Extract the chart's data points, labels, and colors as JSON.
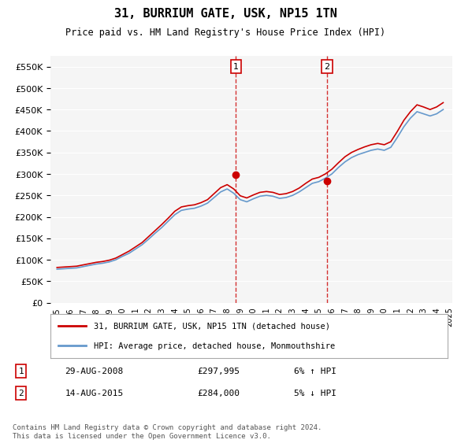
{
  "title": "31, BURRIUM GATE, USK, NP15 1TN",
  "subtitle": "Price paid vs. HM Land Registry's House Price Index (HPI)",
  "legend_line1": "31, BURRIUM GATE, USK, NP15 1TN (detached house)",
  "legend_line2": "HPI: Average price, detached house, Monmouthshire",
  "sale1_label": "1",
  "sale1_date": "29-AUG-2008",
  "sale1_price": "£297,995",
  "sale1_hpi": "6% ↑ HPI",
  "sale1_year": 2008.67,
  "sale2_label": "2",
  "sale2_date": "14-AUG-2015",
  "sale2_price": "£284,000",
  "sale2_hpi": "5% ↓ HPI",
  "sale2_year": 2015.62,
  "property_color": "#cc0000",
  "hpi_color": "#6699cc",
  "vline_color": "#cc0000",
  "footer": "Contains HM Land Registry data © Crown copyright and database right 2024.\nThis data is licensed under the Open Government Licence v3.0.",
  "ylim": [
    0,
    575000
  ],
  "yticks": [
    0,
    50000,
    100000,
    150000,
    200000,
    250000,
    300000,
    350000,
    400000,
    450000,
    500000,
    550000
  ],
  "ylabel_format": "£{0}K",
  "background_color": "#ffffff",
  "plot_bg_color": "#f5f5f5",
  "hpi_data": {
    "years": [
      1995,
      1995.5,
      1996,
      1996.5,
      1997,
      1997.5,
      1998,
      1998.5,
      1999,
      1999.5,
      2000,
      2000.5,
      2001,
      2001.5,
      2002,
      2002.5,
      2003,
      2003.5,
      2004,
      2004.5,
      2005,
      2005.5,
      2006,
      2006.5,
      2007,
      2007.5,
      2008,
      2008.5,
      2009,
      2009.5,
      2010,
      2010.5,
      2011,
      2011.5,
      2012,
      2012.5,
      2013,
      2013.5,
      2014,
      2014.5,
      2015,
      2015.5,
      2016,
      2016.5,
      2017,
      2017.5,
      2018,
      2018.5,
      2019,
      2019.5,
      2020,
      2020.5,
      2021,
      2021.5,
      2022,
      2022.5,
      2023,
      2023.5,
      2024,
      2024.5
    ],
    "values": [
      78000,
      79000,
      80000,
      81000,
      84000,
      87000,
      90000,
      92000,
      95000,
      100000,
      108000,
      115000,
      125000,
      135000,
      148000,
      162000,
      175000,
      190000,
      205000,
      215000,
      218000,
      220000,
      225000,
      232000,
      245000,
      258000,
      265000,
      255000,
      240000,
      235000,
      242000,
      248000,
      250000,
      248000,
      243000,
      245000,
      250000,
      258000,
      268000,
      278000,
      282000,
      290000,
      300000,
      315000,
      328000,
      338000,
      345000,
      350000,
      355000,
      358000,
      355000,
      362000,
      385000,
      410000,
      430000,
      445000,
      440000,
      435000,
      440000,
      450000
    ]
  },
  "property_data": {
    "years": [
      1995,
      1995.5,
      1996,
      1996.5,
      1997,
      1997.5,
      1998,
      1998.5,
      1999,
      1999.5,
      2000,
      2000.5,
      2001,
      2001.5,
      2002,
      2002.5,
      2003,
      2003.5,
      2004,
      2004.5,
      2005,
      2005.5,
      2006,
      2006.5,
      2007,
      2007.5,
      2008,
      2008.5,
      2009,
      2009.5,
      2010,
      2010.5,
      2011,
      2011.5,
      2012,
      2012.5,
      2013,
      2013.5,
      2014,
      2014.5,
      2015,
      2015.5,
      2016,
      2016.5,
      2017,
      2017.5,
      2018,
      2018.5,
      2019,
      2019.5,
      2020,
      2020.5,
      2021,
      2021.5,
      2022,
      2022.5,
      2023,
      2023.5,
      2024,
      2024.5
    ],
    "values": [
      82000,
      83000,
      84000,
      85000,
      88000,
      91000,
      94000,
      96000,
      99000,
      104000,
      112000,
      120000,
      130000,
      140000,
      154000,
      168000,
      182000,
      197000,
      213000,
      223000,
      226000,
      228000,
      233000,
      240000,
      254000,
      268000,
      275000,
      265000,
      249000,
      244000,
      251000,
      257000,
      259000,
      257000,
      252000,
      254000,
      259000,
      267000,
      278000,
      288000,
      292000,
      300000,
      311000,
      326000,
      340000,
      350000,
      357000,
      363000,
      368000,
      371000,
      368000,
      375000,
      399000,
      425000,
      445000,
      461000,
      456000,
      450000,
      456000,
      466000
    ]
  }
}
